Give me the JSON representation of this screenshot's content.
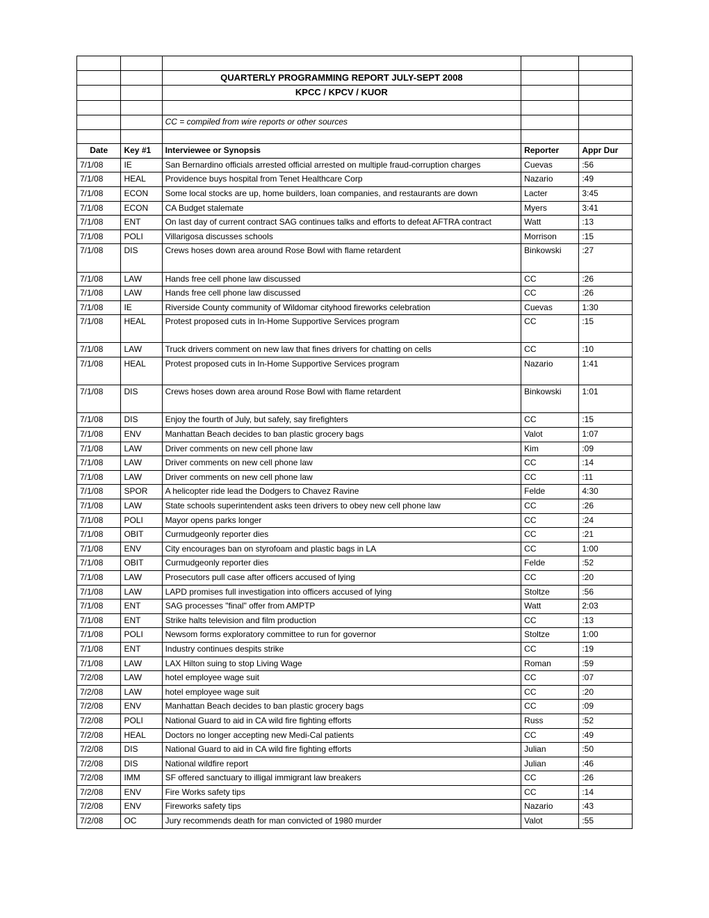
{
  "title": "QUARTERLY PROGRAMMING REPORT JULY-SEPT 2008",
  "subtitle": "KPCC / KPCV / KUOR",
  "legend": "CC = compiled from wire reports or other sources",
  "headers": {
    "date": "Date",
    "key": "Key #1",
    "synopsis": "Interviewee or Synopsis",
    "reporter": "Reporter",
    "dur": "Appr Dur"
  },
  "rows": [
    {
      "date": "7/1/08",
      "key": "IE",
      "synopsis": "San Bernardino officials arrested official arrested on multiple fraud-corruption charges",
      "reporter": "Cuevas",
      "dur": ":56"
    },
    {
      "date": "7/1/08",
      "key": "HEAL",
      "synopsis": "Providence buys hospital from Tenet Healthcare Corp",
      "reporter": "Nazario",
      "dur": ":49"
    },
    {
      "date": "7/1/08",
      "key": "ECON",
      "synopsis": "Some local stocks are up, home builders, loan companies, and restaurants are down",
      "reporter": "Lacter",
      "dur": "3:45"
    },
    {
      "date": "7/1/08",
      "key": "ECON",
      "synopsis": "CA Budget stalemate",
      "reporter": "Myers",
      "dur": "3:41"
    },
    {
      "date": "7/1/08",
      "key": "ENT",
      "synopsis": "On last day of current contract SAG continues talks and efforts to defeat AFTRA contract",
      "reporter": "Watt",
      "dur": ":13"
    },
    {
      "date": "7/1/08",
      "key": "POLI",
      "synopsis": "Villarigosa discusses schools",
      "reporter": "Morrison",
      "dur": ":15"
    },
    {
      "date": "7/1/08",
      "key": "DIS",
      "synopsis": "Crews hoses down area around Rose Bowl with flame retardent",
      "reporter": "Binkowski",
      "dur": ":27"
    },
    {
      "date": "7/1/08",
      "key": "LAW",
      "synopsis": "Hands free cell phone law discussed",
      "reporter": "CC",
      "dur": ":26"
    },
    {
      "date": "7/1/08",
      "key": "LAW",
      "synopsis": "Hands free cell phone law discussed",
      "reporter": "CC",
      "dur": ":26"
    },
    {
      "date": "7/1/08",
      "key": "IE",
      "synopsis": "Riverside County community of Wildomar cityhood fireworks celebration",
      "reporter": "Cuevas",
      "dur": "1:30"
    },
    {
      "date": "7/1/08",
      "key": "HEAL",
      "synopsis": "Protest proposed cuts in In-Home Supportive Services program",
      "reporter": "CC",
      "dur": ":15"
    },
    {
      "date": "7/1/08",
      "key": "LAW",
      "synopsis": "Truck drivers comment on new law that fines drivers for chatting on cells",
      "reporter": "CC",
      "dur": ":10"
    },
    {
      "date": "7/1/08",
      "key": "HEAL",
      "synopsis": "Protest proposed cuts in In-Home Supportive Services program",
      "reporter": "Nazario",
      "dur": "1:41"
    },
    {
      "date": "7/1/08",
      "key": "DIS",
      "synopsis": "Crews hoses down area around Rose Bowl with flame retardent",
      "reporter": "Binkowski",
      "dur": "1:01"
    },
    {
      "date": "7/1/08",
      "key": "DIS",
      "synopsis": "Enjoy the fourth of July, but safely, say firefighters",
      "reporter": "CC",
      "dur": ":15"
    },
    {
      "date": "7/1/08",
      "key": "ENV",
      "synopsis": "Manhattan Beach decides to ban plastic grocery bags",
      "reporter": "Valot",
      "dur": "1:07"
    },
    {
      "date": "7/1/08",
      "key": "LAW",
      "synopsis": "Driver comments on new cell phone law",
      "reporter": "Kim",
      "dur": ":09"
    },
    {
      "date": "7/1/08",
      "key": "LAW",
      "synopsis": "Driver comments on new cell phone law",
      "reporter": "CC",
      "dur": ":14"
    },
    {
      "date": "7/1/08",
      "key": "LAW",
      "synopsis": "Driver comments on new cell phone law",
      "reporter": "CC",
      "dur": ":11"
    },
    {
      "date": "7/1/08",
      "key": "SPOR",
      "synopsis": "A helicopter ride lead the Dodgers to Chavez Ravine",
      "reporter": "Felde",
      "dur": "4:30"
    },
    {
      "date": "7/1/08",
      "key": "LAW",
      "synopsis": "State schools superintendent asks teen drivers to obey new cell phone law",
      "reporter": "CC",
      "dur": ":26"
    },
    {
      "date": "7/1/08",
      "key": "POLI",
      "synopsis": "Mayor opens parks longer",
      "reporter": "CC",
      "dur": ":24"
    },
    {
      "date": "7/1/08",
      "key": "OBIT",
      "synopsis": "Curmudgeonly reporter dies",
      "reporter": "CC",
      "dur": ":21"
    },
    {
      "date": "7/1/08",
      "key": "ENV",
      "synopsis": "City encourages ban on styrofoam and plastic bags in LA",
      "reporter": "CC",
      "dur": "1:00"
    },
    {
      "date": "7/1/08",
      "key": "OBIT",
      "synopsis": "Curmudgeonly reporter dies",
      "reporter": "Felde",
      "dur": ":52"
    },
    {
      "date": "7/1/08",
      "key": "LAW",
      "synopsis": "Prosecutors pull case after officers accused of lying",
      "reporter": "CC",
      "dur": ":20"
    },
    {
      "date": "7/1/08",
      "key": "LAW",
      "synopsis": "LAPD promises full investigation into officers accused of lying",
      "reporter": "Stoltze",
      "dur": ":56"
    },
    {
      "date": "7/1/08",
      "key": "ENT",
      "synopsis": "SAG processes \"final\" offer from AMPTP",
      "reporter": "Watt",
      "dur": "2:03"
    },
    {
      "date": "7/1/08",
      "key": "ENT",
      "synopsis": "Strike halts television and film production",
      "reporter": "CC",
      "dur": ":13"
    },
    {
      "date": "7/1/08",
      "key": "POLI",
      "synopsis": "Newsom forms exploratory committee to run for governor",
      "reporter": "Stoltze",
      "dur": "1:00"
    },
    {
      "date": "7/1/08",
      "key": "ENT",
      "synopsis": "Industry continues despits strike",
      "reporter": "CC",
      "dur": ":19"
    },
    {
      "date": "7/1/08",
      "key": "LAW",
      "synopsis": "LAX Hilton suing to stop Living Wage",
      "reporter": "Roman",
      "dur": ":59"
    },
    {
      "date": "7/2/08",
      "key": "LAW",
      "synopsis": "hotel employee wage suit",
      "reporter": "CC",
      "dur": ":07"
    },
    {
      "date": "7/2/08",
      "key": "LAW",
      "synopsis": "hotel employee wage suit",
      "reporter": "CC",
      "dur": ":20"
    },
    {
      "date": "7/2/08",
      "key": "ENV",
      "synopsis": "Manhattan Beach decides to ban plastic grocery bags",
      "reporter": "CC",
      "dur": ":09"
    },
    {
      "date": "7/2/08",
      "key": "POLI",
      "synopsis": "National Guard to aid in CA wild fire fighting efforts",
      "reporter": "Russ",
      "dur": ":52"
    },
    {
      "date": "7/2/08",
      "key": "HEAL",
      "synopsis": "Doctors no longer accepting new Medi-Cal patients",
      "reporter": "CC",
      "dur": ":49"
    },
    {
      "date": "7/2/08",
      "key": "DIS",
      "synopsis": "National Guard to aid in CA wild fire fighting efforts",
      "reporter": "Julian",
      "dur": ":50"
    },
    {
      "date": "7/2/08",
      "key": "DIS",
      "synopsis": "National wildfire report",
      "reporter": "Julian",
      "dur": ":46"
    },
    {
      "date": "7/2/08",
      "key": "IMM",
      "synopsis": "SF offered sanctuary to illigal immigrant law breakers",
      "reporter": "CC",
      "dur": ":26"
    },
    {
      "date": "7/2/08",
      "key": "ENV",
      "synopsis": "Fire Works safety tips",
      "reporter": "CC",
      "dur": ":14"
    },
    {
      "date": "7/2/08",
      "key": "ENV",
      "synopsis": "Fireworks safety tips",
      "reporter": "Nazario",
      "dur": ":43"
    },
    {
      "date": "7/2/08",
      "key": "OC",
      "synopsis": "Jury recommends death for man convicted of 1980 murder",
      "reporter": "Valot",
      "dur": ":55"
    }
  ],
  "tall_rows": [
    6,
    10,
    12,
    13
  ]
}
